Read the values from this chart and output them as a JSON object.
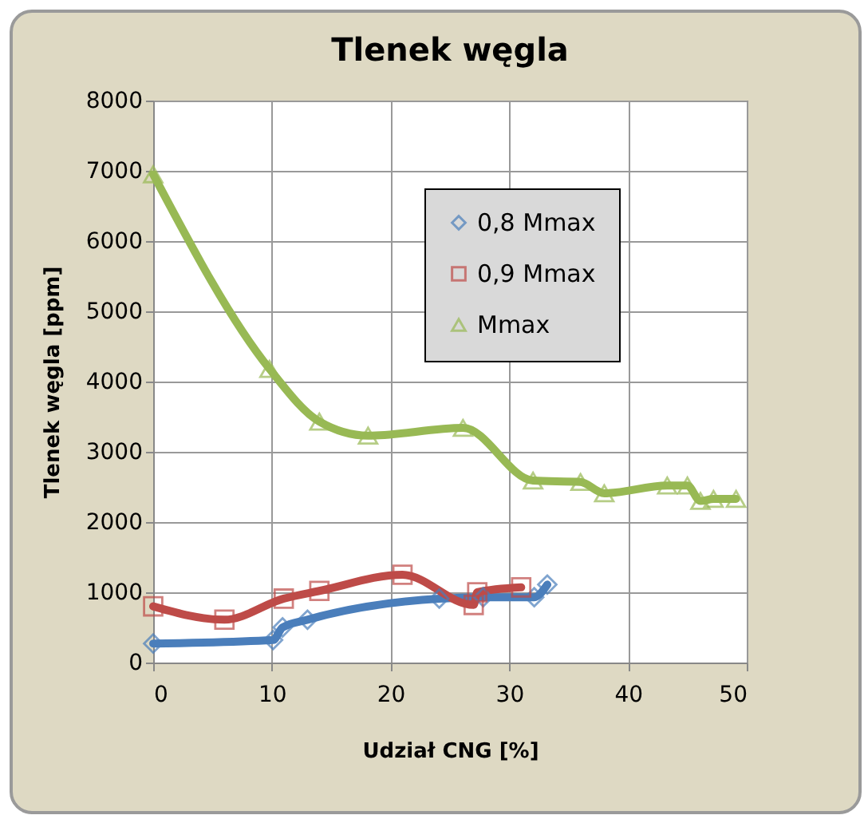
{
  "chart_data": {
    "type": "line",
    "title": "Tlenek węgla",
    "xlabel": "Udział CNG [%]",
    "ylabel": "Tlenek węgla [ppm]",
    "xlim": [
      0,
      50
    ],
    "xticks": [
      0,
      10,
      20,
      30,
      40,
      50
    ],
    "ylim": [
      0,
      8000
    ],
    "yticks": [
      0,
      1000,
      2000,
      3000,
      4000,
      5000,
      6000,
      7000,
      8000
    ],
    "grid": true,
    "legend": "top right",
    "line_style": "solid",
    "series": [
      {
        "name": "0,8 Mmax",
        "color": "#4a7ebb",
        "marker": "diamond",
        "x": [
          0,
          10.1,
          10.9,
          13,
          24.1,
          27.8,
          32.1,
          33.2
        ],
        "values": [
          270,
          320,
          500,
          610,
          910,
          930,
          930,
          1110
        ]
      },
      {
        "name": "0,9 Mmax",
        "color": "#be4b48",
        "marker": "square",
        "x": [
          0,
          6,
          11,
          14,
          21,
          27,
          27.3,
          31
        ],
        "values": [
          800,
          610,
          910,
          1020,
          1250,
          820,
          1000,
          1070
        ]
      },
      {
        "name": "Mmax",
        "color": "#98b954",
        "marker": "triangle",
        "x": [
          0,
          9.8,
          14,
          18.1,
          26.1,
          32,
          36,
          38,
          43.3,
          45,
          46.1,
          47.2,
          49.1
        ],
        "values": [
          6950,
          4180,
          3430,
          3230,
          3340,
          2590,
          2570,
          2410,
          2520,
          2520,
          2300,
          2330,
          2330
        ]
      }
    ]
  }
}
